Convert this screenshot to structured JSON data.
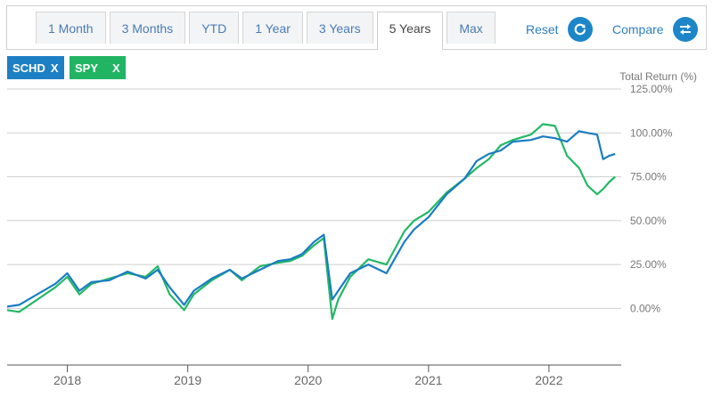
{
  "tabs": [
    {
      "label": "1 Month",
      "active": false
    },
    {
      "label": "3 Months",
      "active": false
    },
    {
      "label": "YTD",
      "active": false
    },
    {
      "label": "1 Year",
      "active": false
    },
    {
      "label": "3 Years",
      "active": false
    },
    {
      "label": "5 Years",
      "active": true
    },
    {
      "label": "Max",
      "active": false
    }
  ],
  "actions": {
    "reset_label": "Reset",
    "compare_label": "Compare"
  },
  "chips": [
    {
      "label": "SCHD",
      "remove": "X",
      "color": "#1d7fc4"
    },
    {
      "label": "SPY",
      "remove": "X",
      "color": "#21b463"
    }
  ],
  "colors": {
    "accent": "#1d86c8",
    "schd": "#1a7cc4",
    "spy": "#23b865"
  },
  "chart_data": {
    "type": "line",
    "ylabel": "Total Return (%)",
    "ylim": [
      -12,
      125
    ],
    "yticks": [
      {
        "value": 125,
        "label": "125.00%"
      },
      {
        "value": 100,
        "label": "100.00%"
      },
      {
        "value": 75,
        "label": "75.00%"
      },
      {
        "value": 50,
        "label": "50.00%"
      },
      {
        "value": 25,
        "label": "25.00%"
      },
      {
        "value": 0,
        "label": "0.00%"
      }
    ],
    "xlim": [
      2017.5,
      2022.6
    ],
    "xticks": [
      {
        "value": 2018,
        "label": "2018"
      },
      {
        "value": 2019,
        "label": "2019"
      },
      {
        "value": 2020,
        "label": "2020"
      },
      {
        "value": 2021,
        "label": "2021"
      },
      {
        "value": 2022,
        "label": "2022"
      }
    ],
    "grid": true,
    "series": [
      {
        "name": "SCHD",
        "x": [
          2017.5,
          2017.6,
          2017.75,
          2017.9,
          2018.0,
          2018.1,
          2018.2,
          2018.35,
          2018.5,
          2018.65,
          2018.75,
          2018.85,
          2018.97,
          2019.05,
          2019.2,
          2019.35,
          2019.45,
          2019.6,
          2019.75,
          2019.85,
          2019.95,
          2020.05,
          2020.13,
          2020.2,
          2020.25,
          2020.35,
          2020.5,
          2020.65,
          2020.8,
          2020.88,
          2021.0,
          2021.15,
          2021.3,
          2021.4,
          2021.5,
          2021.6,
          2021.7,
          2021.85,
          2021.95,
          2022.05,
          2022.15,
          2022.25,
          2022.32,
          2022.4,
          2022.45,
          2022.5,
          2022.55
        ],
        "y": [
          1,
          2,
          8,
          14,
          20,
          10,
          15,
          16,
          21,
          17,
          22,
          12,
          2,
          10,
          17,
          22,
          17,
          22,
          27,
          28,
          31,
          38,
          42,
          5,
          10,
          20,
          25,
          20,
          38,
          45,
          52,
          65,
          74,
          84,
          88,
          90,
          95,
          96,
          98,
          97,
          95,
          101,
          100,
          99,
          85,
          87,
          88
        ]
      },
      {
        "name": "SPY",
        "x": [
          2017.5,
          2017.6,
          2017.75,
          2017.9,
          2018.0,
          2018.1,
          2018.2,
          2018.35,
          2018.5,
          2018.65,
          2018.75,
          2018.85,
          2018.97,
          2019.05,
          2019.2,
          2019.35,
          2019.45,
          2019.6,
          2019.75,
          2019.85,
          2019.95,
          2020.05,
          2020.13,
          2020.2,
          2020.25,
          2020.35,
          2020.5,
          2020.65,
          2020.8,
          2020.88,
          2021.0,
          2021.15,
          2021.3,
          2021.4,
          2021.5,
          2021.6,
          2021.7,
          2021.85,
          2021.95,
          2022.05,
          2022.15,
          2022.25,
          2022.32,
          2022.4,
          2022.45,
          2022.5,
          2022.55
        ],
        "y": [
          -1,
          -2,
          5,
          12,
          18,
          8,
          14,
          17,
          20,
          18,
          24,
          8,
          -1,
          8,
          16,
          22,
          16,
          24,
          26,
          27,
          30,
          36,
          40,
          -6,
          5,
          18,
          28,
          25,
          44,
          50,
          55,
          66,
          74,
          80,
          85,
          93,
          96,
          99,
          105,
          104,
          87,
          80,
          70,
          65,
          68,
          72,
          75
        ]
      }
    ]
  }
}
